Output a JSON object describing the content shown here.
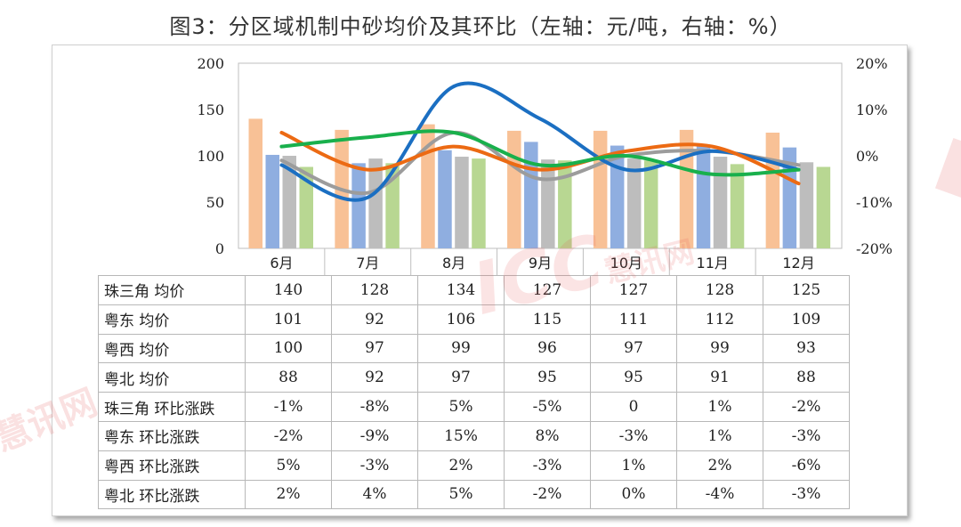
{
  "title": "图3：分区域机制中砂均价及其环比（左轴：元/吨，右轴：%）",
  "watermark": {
    "brand": "ICC",
    "name": "慧讯网"
  },
  "colors": {
    "zsj_bar": "#F8C196",
    "yd_bar": "#8FAEE0",
    "yx_bar": "#BDBDBD",
    "yb_bar": "#B8D792",
    "zsj_line": "#9C9C9C",
    "yd_line": "#1B6FC2",
    "yx_line": "#EC6A13",
    "yb_line": "#19B04C"
  },
  "chart_data": {
    "type": "bar+line",
    "categories": [
      "6月",
      "7月",
      "8月",
      "9月",
      "10月",
      "11月",
      "12月"
    ],
    "left_axis": {
      "ticks": [
        "0",
        "50",
        "100",
        "150",
        "200"
      ],
      "range": [
        0,
        200
      ]
    },
    "right_axis": {
      "ticks": [
        "-20%",
        "-10%",
        "0%",
        "10%",
        "20%"
      ],
      "range": [
        -20,
        20
      ]
    },
    "bar_series": [
      {
        "name": "珠三角 均价",
        "color_key": "zsj_bar",
        "values": [
          140,
          128,
          134,
          127,
          127,
          128,
          125
        ]
      },
      {
        "name": "粤东 均价",
        "color_key": "yd_bar",
        "values": [
          101,
          92,
          106,
          115,
          111,
          112,
          109
        ]
      },
      {
        "name": "粤西 均价",
        "color_key": "yx_bar",
        "values": [
          100,
          97,
          99,
          96,
          97,
          99,
          93
        ]
      },
      {
        "name": "粤北 均价",
        "color_key": "yb_bar",
        "values": [
          88,
          92,
          97,
          95,
          95,
          91,
          88
        ]
      }
    ],
    "line_series": [
      {
        "name": "珠三角 环比涨跌",
        "color_key": "zsj_line",
        "values": [
          -1,
          -8,
          5,
          -5,
          0,
          1,
          -2
        ],
        "labels": [
          "-1%",
          "-8%",
          "5%",
          "-5%",
          "0",
          "1%",
          "-2%"
        ]
      },
      {
        "name": "粤东 环比涨跌",
        "color_key": "yd_line",
        "values": [
          -2,
          -9,
          15,
          8,
          -3,
          1,
          -3
        ],
        "labels": [
          "-2%",
          "-9%",
          "15%",
          "8%",
          "-3%",
          "1%",
          "-3%"
        ]
      },
      {
        "name": "粤西 环比涨跌",
        "color_key": "yx_line",
        "values": [
          5,
          -3,
          2,
          -3,
          1,
          2,
          -6
        ],
        "labels": [
          "5%",
          "-3%",
          "2%",
          "-3%",
          "1%",
          "2%",
          "-6%"
        ]
      },
      {
        "name": "粤北 环比涨跌",
        "color_key": "yb_line",
        "values": [
          2,
          4,
          5,
          -2,
          0,
          -4,
          -3
        ],
        "labels": [
          "2%",
          "4%",
          "5%",
          "-2%",
          "0%",
          "-4%",
          "-3%"
        ]
      }
    ]
  }
}
